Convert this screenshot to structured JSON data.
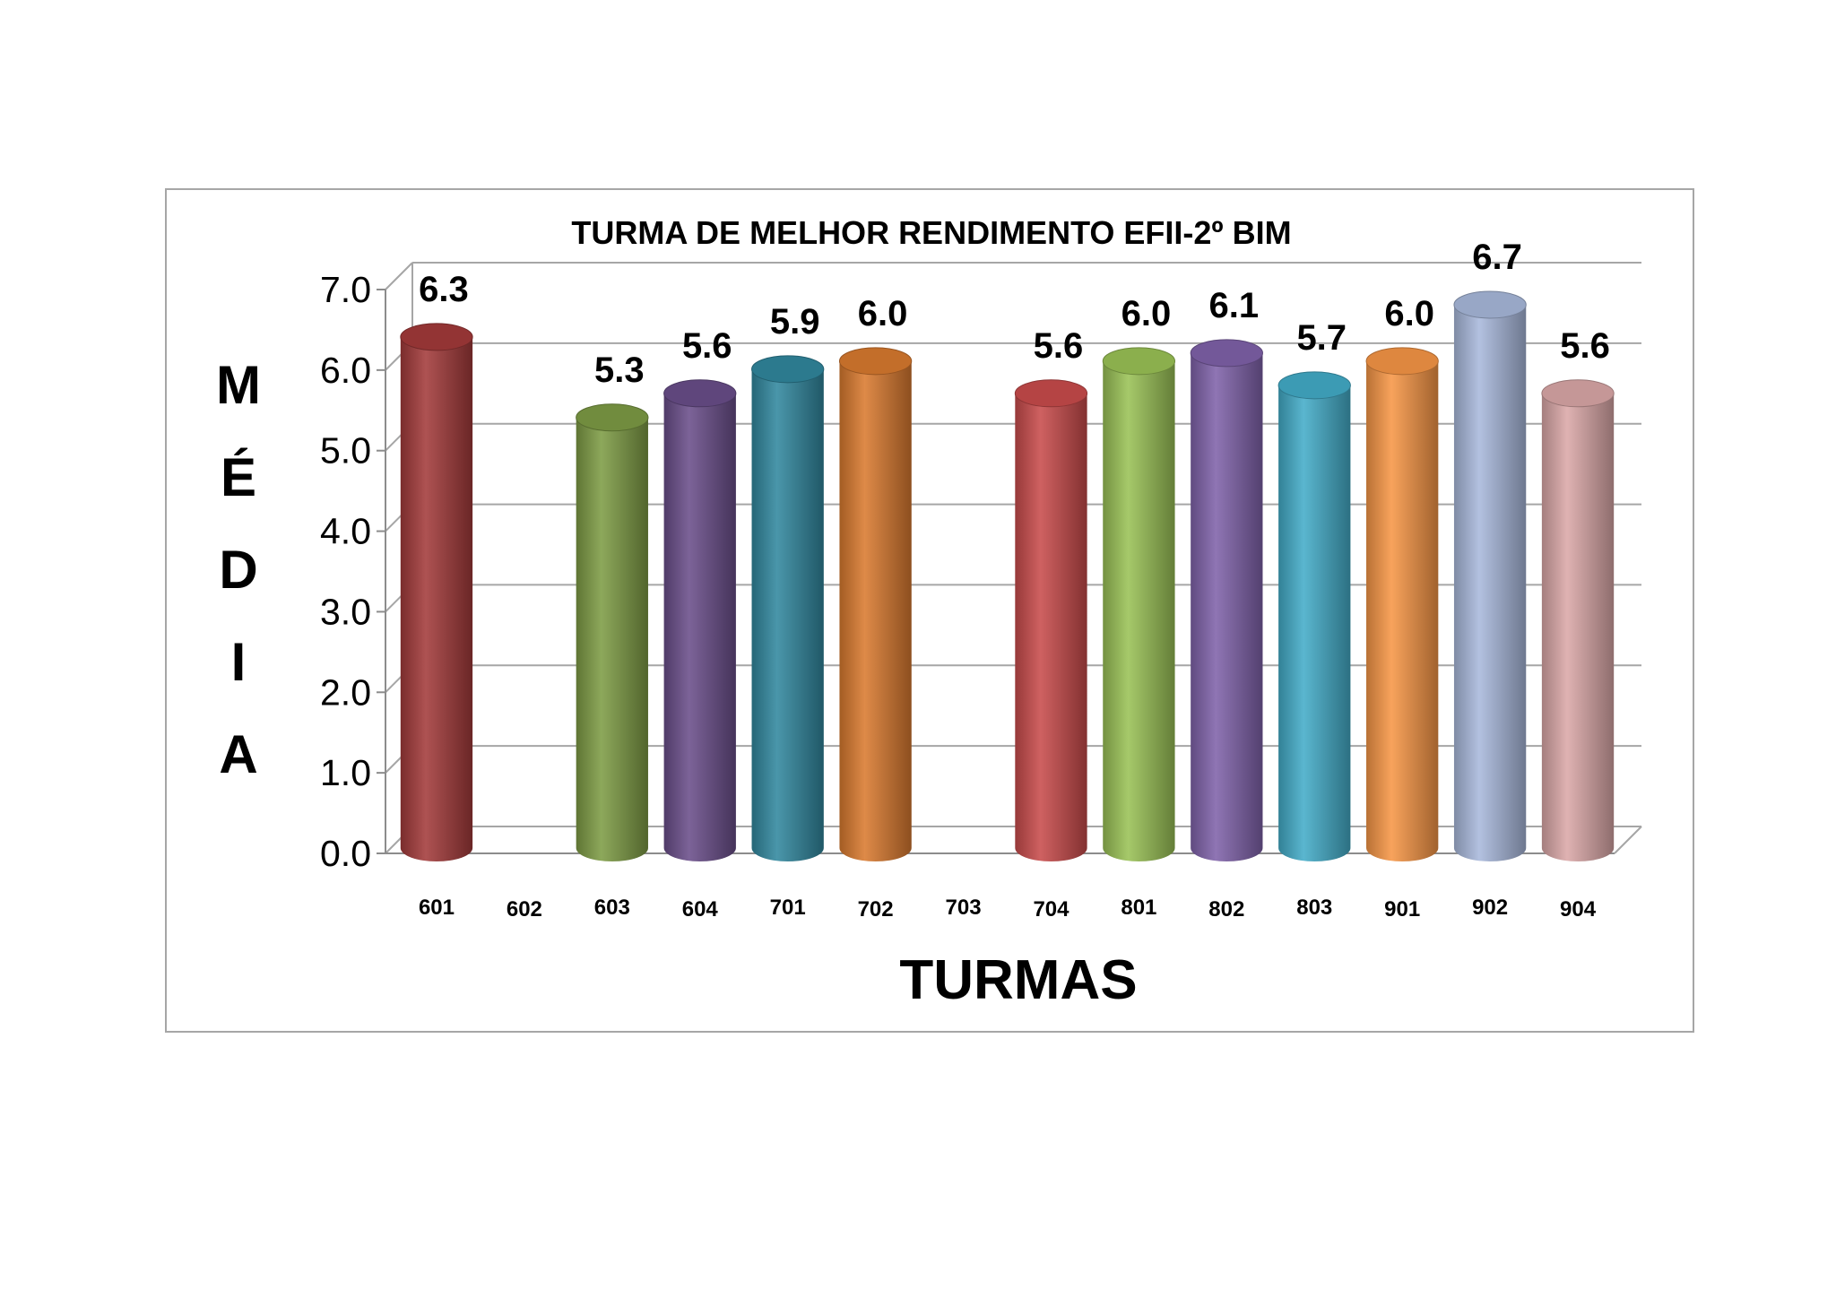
{
  "chart_data": {
    "type": "bar",
    "title": "TURMA DE MELHOR RENDIMENTO EFII-2º BIM",
    "xlabel": "TURMAS",
    "ylabel": "MÉDIA",
    "ylim": [
      0,
      7
    ],
    "yticks": [
      "0.0",
      "1.0",
      "2.0",
      "3.0",
      "4.0",
      "5.0",
      "6.0",
      "7.0"
    ],
    "grid": true,
    "categories": [
      "601",
      "602",
      "603",
      "604",
      "701",
      "702",
      "703",
      "704",
      "801",
      "802",
      "803",
      "901",
      "902",
      "904"
    ],
    "values": [
      6.3,
      null,
      5.3,
      5.6,
      5.9,
      6.0,
      null,
      5.6,
      6.0,
      6.1,
      5.7,
      6.0,
      6.7,
      5.6
    ],
    "data_labels": [
      "6.3",
      "",
      "5.3",
      "5.6",
      "5.9",
      "6.0",
      "",
      "5.6",
      "6.0",
      "6.1",
      "5.7",
      "6.0",
      "6.7",
      "5.6"
    ],
    "colors": [
      "#a33a3a",
      null,
      "#7e9c45",
      "#6a4e8a",
      "#31889e",
      "#d97a2f",
      null,
      "#c94c4c",
      "#9ac256",
      "#8062aa",
      "#43acc8",
      "#f79646",
      "#a9b9dc",
      "#dba8a8"
    ]
  }
}
